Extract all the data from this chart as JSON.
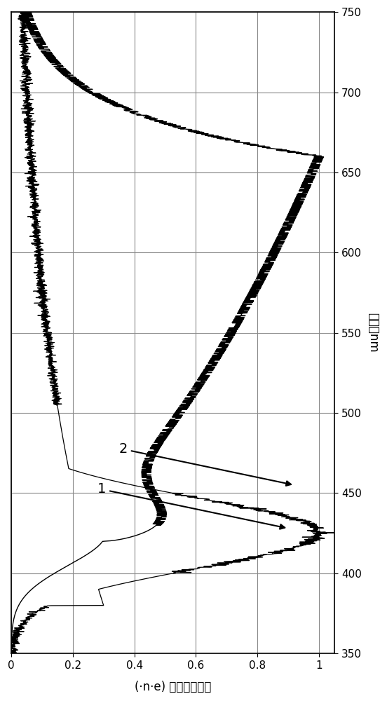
{
  "x_label": "(·n·e) 强度任意单位",
  "y_label": "波长，nm",
  "xlim": [
    0,
    1.05
  ],
  "ylim": [
    350,
    750
  ],
  "xticks": [
    0,
    0.2,
    0.4,
    0.6,
    0.8,
    1.0
  ],
  "xticklabels": [
    "0",
    "0.2",
    "0.4",
    "0.6",
    "0.8",
    "1"
  ],
  "yticks": [
    350,
    400,
    450,
    500,
    550,
    600,
    650,
    700,
    750
  ],
  "background_color": "#ffffff",
  "grid_color": "#888888",
  "curve_color": "#000000",
  "label1": "1",
  "label2": "2"
}
